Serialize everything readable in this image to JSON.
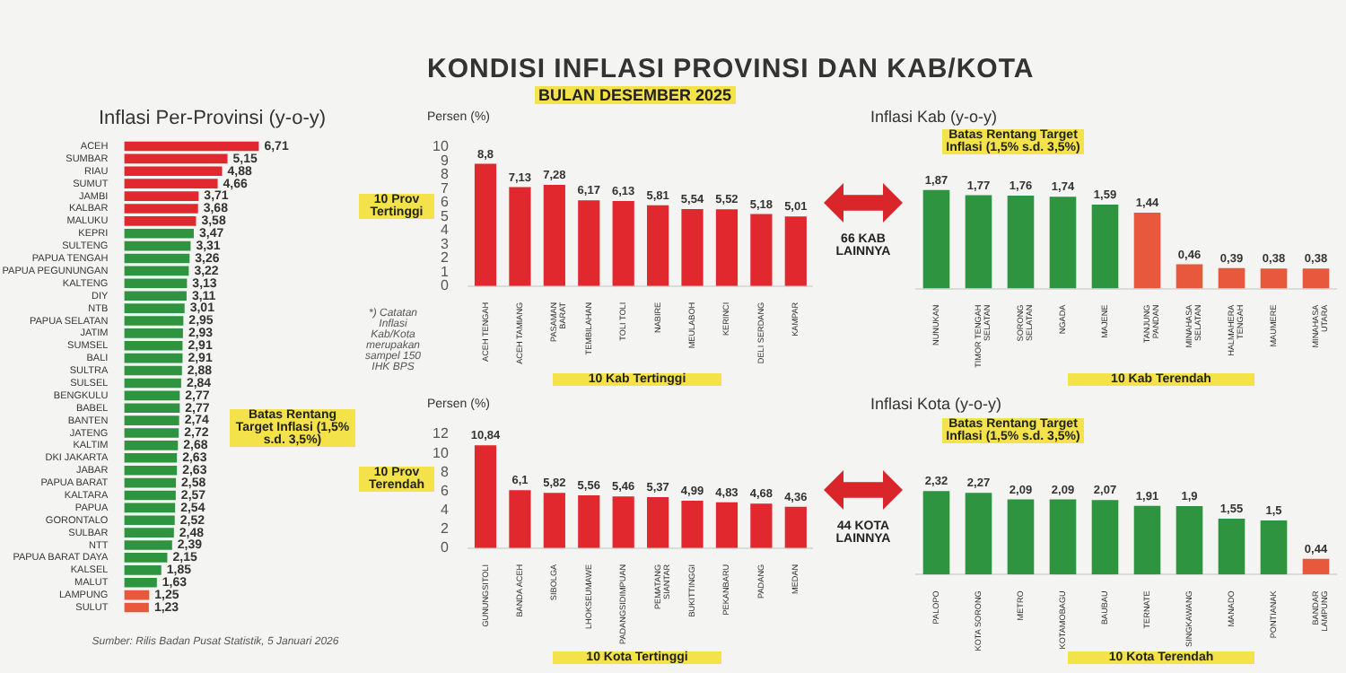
{
  "chart_data": [
    {
      "type": "bar",
      "orientation": "horizontal",
      "title": "Inflasi Per-Provinsi (y-o-y)",
      "categories": [
        "ACEH",
        "SUMBAR",
        "RIAU",
        "SUMUT",
        "JAMBI",
        "KALBAR",
        "MALUKU",
        "KEPRI",
        "SULTENG",
        "PAPUA TENGAH",
        "PAPUA PEGUNUNGAN",
        "KALTENG",
        "DIY",
        "NTB",
        "PAPUA SELATAN",
        "JATIM",
        "SUMSEL",
        "BALI",
        "SULTRA",
        "SULSEL",
        "BENGKULU",
        "BABEL",
        "BANTEN",
        "JATENG",
        "KALTIM",
        "DKI JAKARTA",
        "JABAR",
        "PAPUA BARAT",
        "KALTARA",
        "PAPUA",
        "GORONTALO",
        "SULBAR",
        "NTT",
        "PAPUA BARAT DAYA",
        "KALSEL",
        "MALUT",
        "LAMPUNG",
        "SULUT"
      ],
      "values": [
        6.71,
        5.15,
        4.88,
        4.66,
        3.71,
        3.68,
        3.58,
        3.47,
        3.31,
        3.26,
        3.22,
        3.13,
        3.11,
        3.01,
        2.95,
        2.93,
        2.91,
        2.91,
        2.88,
        2.84,
        2.77,
        2.77,
        2.74,
        2.72,
        2.68,
        2.63,
        2.63,
        2.58,
        2.57,
        2.54,
        2.52,
        2.48,
        2.39,
        2.15,
        1.85,
        1.63,
        1.25,
        1.23
      ],
      "colors": [
        "#e0282e",
        "#e0282e",
        "#e0282e",
        "#e0282e",
        "#e0282e",
        "#e0282e",
        "#e0282e",
        "#2e9440",
        "#2e9440",
        "#2e9440",
        "#2e9440",
        "#2e9440",
        "#2e9440",
        "#2e9440",
        "#2e9440",
        "#2e9440",
        "#2e9440",
        "#2e9440",
        "#2e9440",
        "#2e9440",
        "#2e9440",
        "#2e9440",
        "#2e9440",
        "#2e9440",
        "#2e9440",
        "#2e9440",
        "#2e9440",
        "#2e9440",
        "#2e9440",
        "#2e9440",
        "#2e9440",
        "#2e9440",
        "#2e9440",
        "#2e9440",
        "#2e9440",
        "#2e9440",
        "#e8583c",
        "#e8583c"
      ],
      "value_labels": [
        "6,71",
        "5,15",
        "4,88",
        "4,66",
        "3,71",
        "3,68",
        "3,58",
        "3,47",
        "3,31",
        "3,26",
        "3,22",
        "3,13",
        "3,11",
        "3,01",
        "2,95",
        "2,93",
        "2,91",
        "2,91",
        "2,88",
        "2,84",
        "2,77",
        "2,77",
        "2,74",
        "2,72",
        "2,68",
        "2,63",
        "2,63",
        "2,58",
        "2,57",
        "2,54",
        "2,52",
        "2,48",
        "2,39",
        "2,15",
        "1,85",
        "1,63",
        "1,25",
        "1,23"
      ],
      "tick_labels": "y",
      "annotations": [
        "10 Prov Tertinggi",
        "10 Prov Terendah",
        "Batas Rentang Target Inflasi (1,5% s.d. 3,5%)",
        "*) Catatan Inflasi Kab/Kota merupakan sampel 150 IHK BPS",
        "Sumber: Rilis Badan Pusat Statistik, 5 Januari 2026"
      ]
    },
    {
      "type": "bar",
      "title": "KONDISI INFLASI PROVINSI DAN KAB/KOTA",
      "subtitle": "BULAN DESEMBER 2025",
      "ylabel": "Persen (%)",
      "categories": [
        "ACEH TENGAH",
        "ACEH TAMIANG",
        "PASAMAN BARAT",
        "TEMBILAHAN",
        "TOLI TOLI",
        "NABIRE",
        "MEULABOH",
        "KERINCI",
        "DELI SERDANG",
        "KAMPAR"
      ],
      "values": [
        8.8,
        7.13,
        7.28,
        6.17,
        6.13,
        5.81,
        5.54,
        5.52,
        5.18,
        5.01
      ],
      "color": "#e0282e",
      "ylim": [
        0,
        10
      ],
      "yticks": [
        0,
        1,
        2,
        3,
        4,
        5,
        6,
        7,
        8,
        9,
        10
      ],
      "value_labels": [
        "8,8",
        "7,13",
        "7,28",
        "6,17",
        "6,13",
        "5,81",
        "5,54",
        "5,52",
        "5,18",
        "5,01"
      ],
      "annotations": [
        "10 Kab Tertinggi"
      ]
    },
    {
      "type": "bar",
      "title": "Inflasi Kab (y-o-y)",
      "categories": [
        "NUNUKAN",
        "TIMOR TENGAH SELATAN",
        "SORONG SELATAN",
        "NGADA",
        "MAJENE",
        "TANJUNG PANDAN",
        "MINAHASA SELATAN",
        "HALMAHERA TENGAH",
        "MAUMERE",
        "MINAHASA UTARA"
      ],
      "values": [
        1.87,
        1.77,
        1.76,
        1.74,
        1.59,
        1.44,
        0.46,
        0.39,
        0.38,
        0.38
      ],
      "colors": [
        "#2e9440",
        "#2e9440",
        "#2e9440",
        "#2e9440",
        "#2e9440",
        "#e8583c",
        "#e8583c",
        "#e8583c",
        "#e8583c",
        "#e8583c"
      ],
      "value_labels": [
        "1,87",
        "1,77",
        "1,76",
        "1,74",
        "1,59",
        "1,44",
        "0,46",
        "0,39",
        "0,38",
        "0,38"
      ],
      "tick_labels": "x",
      "annotations": [
        "Batas Rentang Target Inflasi (1,5% s.d. 3,5%)",
        "10 Kab Terendah",
        "66 KAB LAINNYA"
      ]
    },
    {
      "type": "bar",
      "ylabel": "Persen (%)",
      "categories": [
        "GUNUNGSITOLI",
        "BANDA ACEH",
        "SIBOLGA",
        "LHOKSEUMAWE",
        "PADANGSIDIMPUAN",
        "PEMATANG SIANTAR",
        "BUKITTINGGI",
        "PEKANBARU",
        "PADANG",
        "MEDAN"
      ],
      "values": [
        10.84,
        6.1,
        5.82,
        5.56,
        5.46,
        5.37,
        4.99,
        4.83,
        4.68,
        4.36
      ],
      "color": "#e0282e",
      "ylim": [
        0,
        12
      ],
      "yticks": [
        0,
        2,
        4,
        6,
        8,
        10,
        12
      ],
      "value_labels": [
        "10,84",
        "6,1",
        "5,82",
        "5,56",
        "5,46",
        "5,37",
        "4,99",
        "4,83",
        "4,68",
        "4,36"
      ],
      "annotations": [
        "10 Kota Tertinggi"
      ]
    },
    {
      "type": "bar",
      "title": "Inflasi Kota (y-o-y)",
      "categories": [
        "PALOPO",
        "KOTA SORONG",
        "METRO",
        "KOTAMOBAGU",
        "BAUBAU",
        "TERNATE",
        "SINGKAWANG",
        "MANADO",
        "PONTIANAK",
        "BANDAR LAMPUNG"
      ],
      "values": [
        2.32,
        2.27,
        2.09,
        2.09,
        2.07,
        1.91,
        1.9,
        1.55,
        1.5,
        0.44
      ],
      "colors": [
        "#2e9440",
        "#2e9440",
        "#2e9440",
        "#2e9440",
        "#2e9440",
        "#2e9440",
        "#2e9440",
        "#2e9440",
        "#2e9440",
        "#e8583c"
      ],
      "value_labels": [
        "2,32",
        "2,27",
        "2,09",
        "2,09",
        "2,07",
        "1,91",
        "1,9",
        "1,55",
        "1,5",
        "0,44"
      ],
      "tick_labels": "x",
      "annotations": [
        "Batas Rentang Target Inflasi (1,5% s.d. 3,5%)",
        "10 Kota Terendah",
        "44 KOTA LAINNYA"
      ]
    }
  ]
}
